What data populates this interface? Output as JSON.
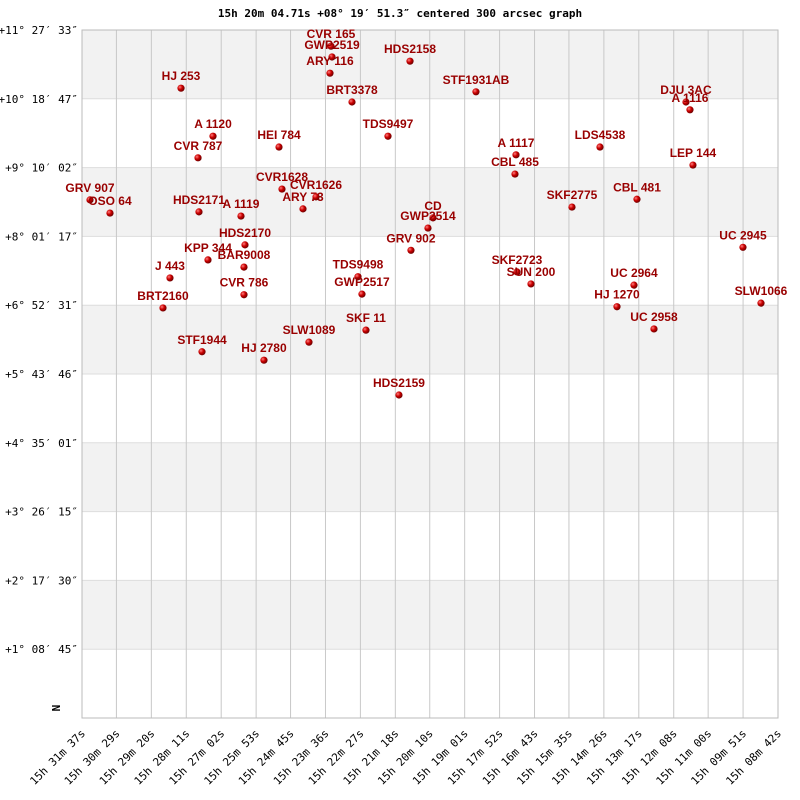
{
  "chart_data": {
    "type": "scatter",
    "title": "15h 20m 04.71s +08° 19′ 51.3″ centered 300 arcsec graph",
    "axis_marker": "N",
    "color": "#cc0000",
    "label_color": "#990000",
    "grid": true,
    "point_labels": [
      "GRV 907",
      "OSO 64",
      "HJ 253",
      "CVR 787",
      "A 1120",
      "HDS2171",
      "A 1119",
      "HEI 784",
      "CVR1628",
      "ARY 73",
      "CVR1626",
      "CVR 165",
      "GWP2519",
      "ARY 116",
      "BRT3378",
      "HDS2158",
      "TDS9497",
      "STF1931AB",
      "HDS2170",
      "KPP 344",
      "BAR9008",
      "J 443",
      "CVR 786",
      "BRT2160",
      "STF1944",
      "HJ 2780",
      "SLW1089",
      "TDS9498",
      "GWP2517",
      "SKF 11",
      "HDS2159",
      "CD",
      "GWP2514",
      "GRV 902",
      "A 1117",
      "CBL 485",
      "LDS4538",
      "SKF2775",
      "CBL 481",
      "SKF2723",
      "SUN 200",
      "UC 2964",
      "HJ 1270",
      "UC 2958",
      "DJU 3AC",
      "A 1116",
      "LEP 144",
      "UC 2945",
      "SLW1066"
    ],
    "x": [
      1881.2,
      1841.7,
      1701.4,
      1667.8,
      1638.2,
      1665.9,
      1582.9,
      1507.8,
      1501.9,
      1460.4,
      1434.7,
      1405.1,
      1403.1,
      1407.1,
      1363.6,
      1249.0,
      1292.5,
      1118.7,
      1575.0,
      1648.1,
      1577.0,
      1723.2,
      1577.0,
      1737.0,
      1659.9,
      1537.5,
      1448.6,
      1351.8,
      1343.9,
      1336.0,
      1270.8,
      1203.6,
      1213.5,
      1247.1,
      1039.6,
      1041.6,
      873.7,
      929.0,
      800.6,
      1037.7,
      1010.0,
      806.5,
      840.1,
      767.0,
      703.8,
      695.9,
      690.0,
      591.2,
      555.6
    ],
    "values": [
      8.63,
      8.41,
      10.49,
      9.33,
      9.69,
      8.43,
      8.36,
      9.51,
      8.81,
      8.48,
      8.68,
      11.19,
      11.01,
      10.74,
      10.26,
      10.94,
      9.69,
      10.43,
      7.88,
      7.63,
      7.51,
      7.33,
      7.05,
      6.83,
      6.1,
      5.96,
      6.26,
      7.35,
      7.06,
      6.46,
      5.38,
      8.33,
      8.16,
      7.79,
      9.38,
      9.06,
      9.51,
      8.51,
      8.64,
      7.43,
      7.23,
      7.21,
      6.85,
      6.48,
      10.26,
      10.13,
      9.21,
      7.84,
      6.91
    ],
    "xlim": [
      1897,
      522
    ],
    "ylim": [
      0,
      11.4592
    ],
    "xticks": [
      {
        "value": 1897,
        "label": "15h 31m 37s"
      },
      {
        "value": 1829,
        "label": "15h 30m 29s"
      },
      {
        "value": 1760,
        "label": "15h 29m 20s"
      },
      {
        "value": 1691,
        "label": "15h 28m 11s"
      },
      {
        "value": 1622,
        "label": "15h 27m 02s"
      },
      {
        "value": 1553,
        "label": "15h 25m 53s"
      },
      {
        "value": 1485,
        "label": "15h 24m 45s"
      },
      {
        "value": 1416,
        "label": "15h 23m 36s"
      },
      {
        "value": 1347,
        "label": "15h 22m 27s"
      },
      {
        "value": 1278,
        "label": "15h 21m 18s"
      },
      {
        "value": 1210,
        "label": "15h 20m 10s"
      },
      {
        "value": 1141,
        "label": "15h 19m 01s"
      },
      {
        "value": 1072,
        "label": "15h 17m 52s"
      },
      {
        "value": 1003,
        "label": "15h 16m 43s"
      },
      {
        "value": 935,
        "label": "15h 15m 35s"
      },
      {
        "value": 866,
        "label": "15h 14m 26s"
      },
      {
        "value": 797,
        "label": "15h 13m 17s"
      },
      {
        "value": 728,
        "label": "15h 12m 08s"
      },
      {
        "value": 660,
        "label": "15h 11m 00s"
      },
      {
        "value": 591,
        "label": "15h 09m 51s"
      },
      {
        "value": 522,
        "label": "15h 08m 42s"
      }
    ],
    "yticks": [
      {
        "value": 11.4592,
        "label": "+11° 27′ 33″"
      },
      {
        "value": 10.3131,
        "label": "+10° 18′ 47″"
      },
      {
        "value": 9.1672,
        "label": "+9° 10′ 02″"
      },
      {
        "value": 8.0214,
        "label": "+8° 01′ 17″"
      },
      {
        "value": 6.8753,
        "label": "+6° 52′ 31″"
      },
      {
        "value": 5.7294,
        "label": "+5° 43′ 46″"
      },
      {
        "value": 4.5836,
        "label": "+4° 35′ 01″"
      },
      {
        "value": 3.4375,
        "label": "+3° 26′ 15″"
      },
      {
        "value": 2.2917,
        "label": "+2° 17′ 30″"
      },
      {
        "value": 1.1458,
        "label": "+1° 08′ 45″"
      }
    ]
  }
}
